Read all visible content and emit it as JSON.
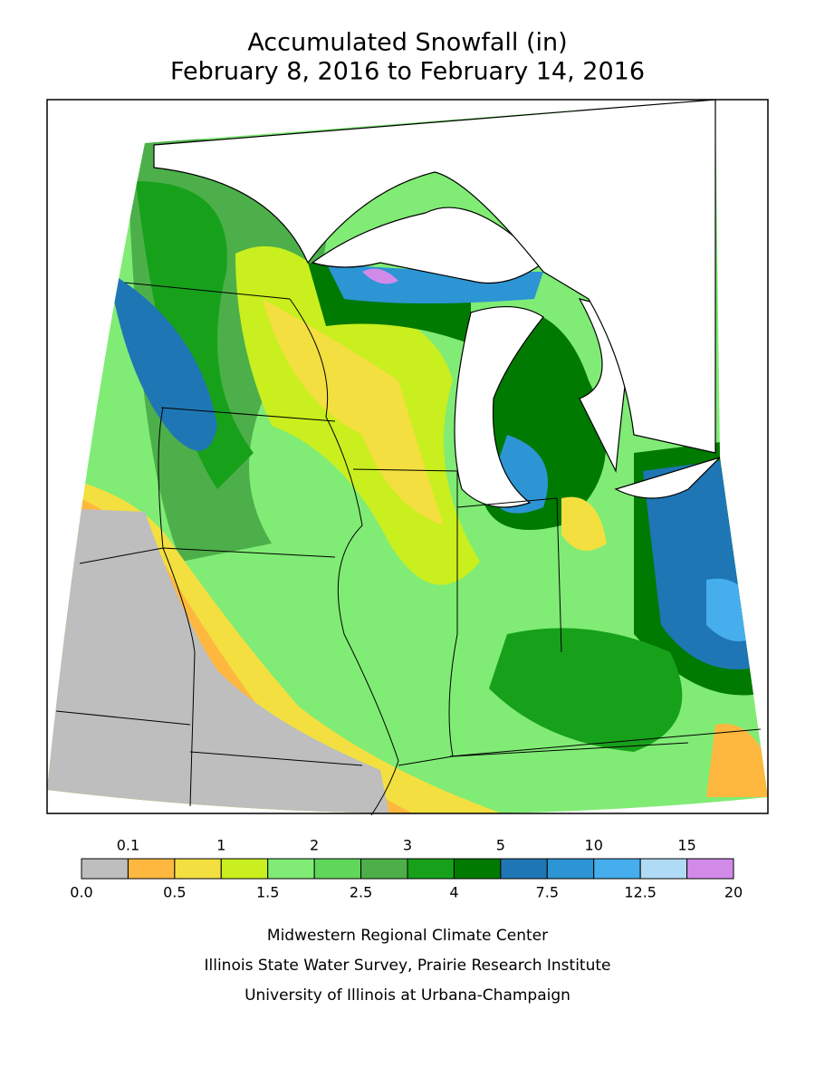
{
  "header": {
    "title": "Accumulated Snowfall (in)",
    "subtitle": "February 8, 2016 to February 14, 2016"
  },
  "legend": {
    "breaks": [
      "0.0",
      "0.1",
      "0.5",
      "1",
      "1.5",
      "2",
      "2.5",
      "3",
      "4",
      "5",
      "7.5",
      "10",
      "12.5",
      "15",
      "20"
    ],
    "colors": [
      "#bebebe",
      "#ffb83f",
      "#f3df3f",
      "#c9ef1e",
      "#80ec75",
      "#60d65b",
      "#4daf4a",
      "#17a11b",
      "#007a00",
      "#1f76b4",
      "#2d95d3",
      "#46aeec",
      "#b0dbf6",
      "#d28ae9"
    ]
  },
  "credits": [
    "Midwestern Regional Climate Center",
    "Illinois State Water Survey, Prairie Research Institute",
    "University of Illinois at Urbana-Champaign"
  ]
}
